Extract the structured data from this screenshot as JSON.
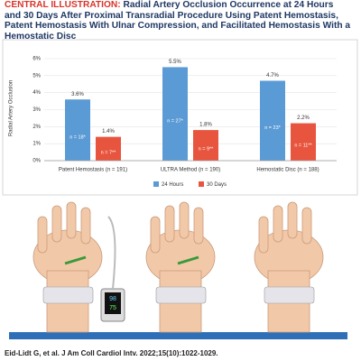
{
  "header": {
    "label": "CENTRAL ILLUSTRATION:",
    "title": "Radial Artery Occlusion Occurrence at 24 Hours and 30 Days After Proximal Transradial Procedure Using Patent Hemostasis, Patent Hemostasis With Ulnar Compression, and Facilitated Hemostasis With a Hemostatic Disc"
  },
  "chart_data": {
    "type": "bar",
    "categories": [
      "Patent Hemostasis (n = 191)",
      "ULTRA Method (n = 190)",
      "Hemostatic Disc (n = 188)"
    ],
    "series": [
      {
        "name": "24 Hours",
        "color": "#5b9bd5",
        "values": [
          3.6,
          5.5,
          4.7
        ],
        "value_labels": [
          "3.6%",
          "5.5%",
          "4.7%"
        ],
        "bar_labels": [
          "n = 18*",
          "n = 27*",
          "n = 23*"
        ]
      },
      {
        "name": "30 Days",
        "color": "#e8553f",
        "values": [
          1.4,
          1.8,
          2.2
        ],
        "value_labels": [
          "1.4%",
          "1.8%",
          "2.2%"
        ],
        "bar_labels": [
          "n = 7**",
          "n = 9**",
          "n = 11**"
        ]
      }
    ],
    "y_label": "Radial Artery Occlusion",
    "ylim": [
      0,
      6
    ],
    "yticks": [
      {
        "value": 0,
        "label": "0%"
      },
      {
        "value": 1,
        "label": "1%"
      },
      {
        "value": 2,
        "label": "2%"
      },
      {
        "value": 3,
        "label": "3%"
      },
      {
        "value": 4,
        "label": "4%"
      },
      {
        "value": 5,
        "label": "5%"
      },
      {
        "value": 6,
        "label": "6%"
      }
    ],
    "grid": true,
    "legend": "bottom"
  },
  "device_display": [
    "98",
    "75"
  ],
  "citation": "Eid-Lidt G, et al. J Am Coll Cardiol Intv. 2022;15(10):1022-1029."
}
